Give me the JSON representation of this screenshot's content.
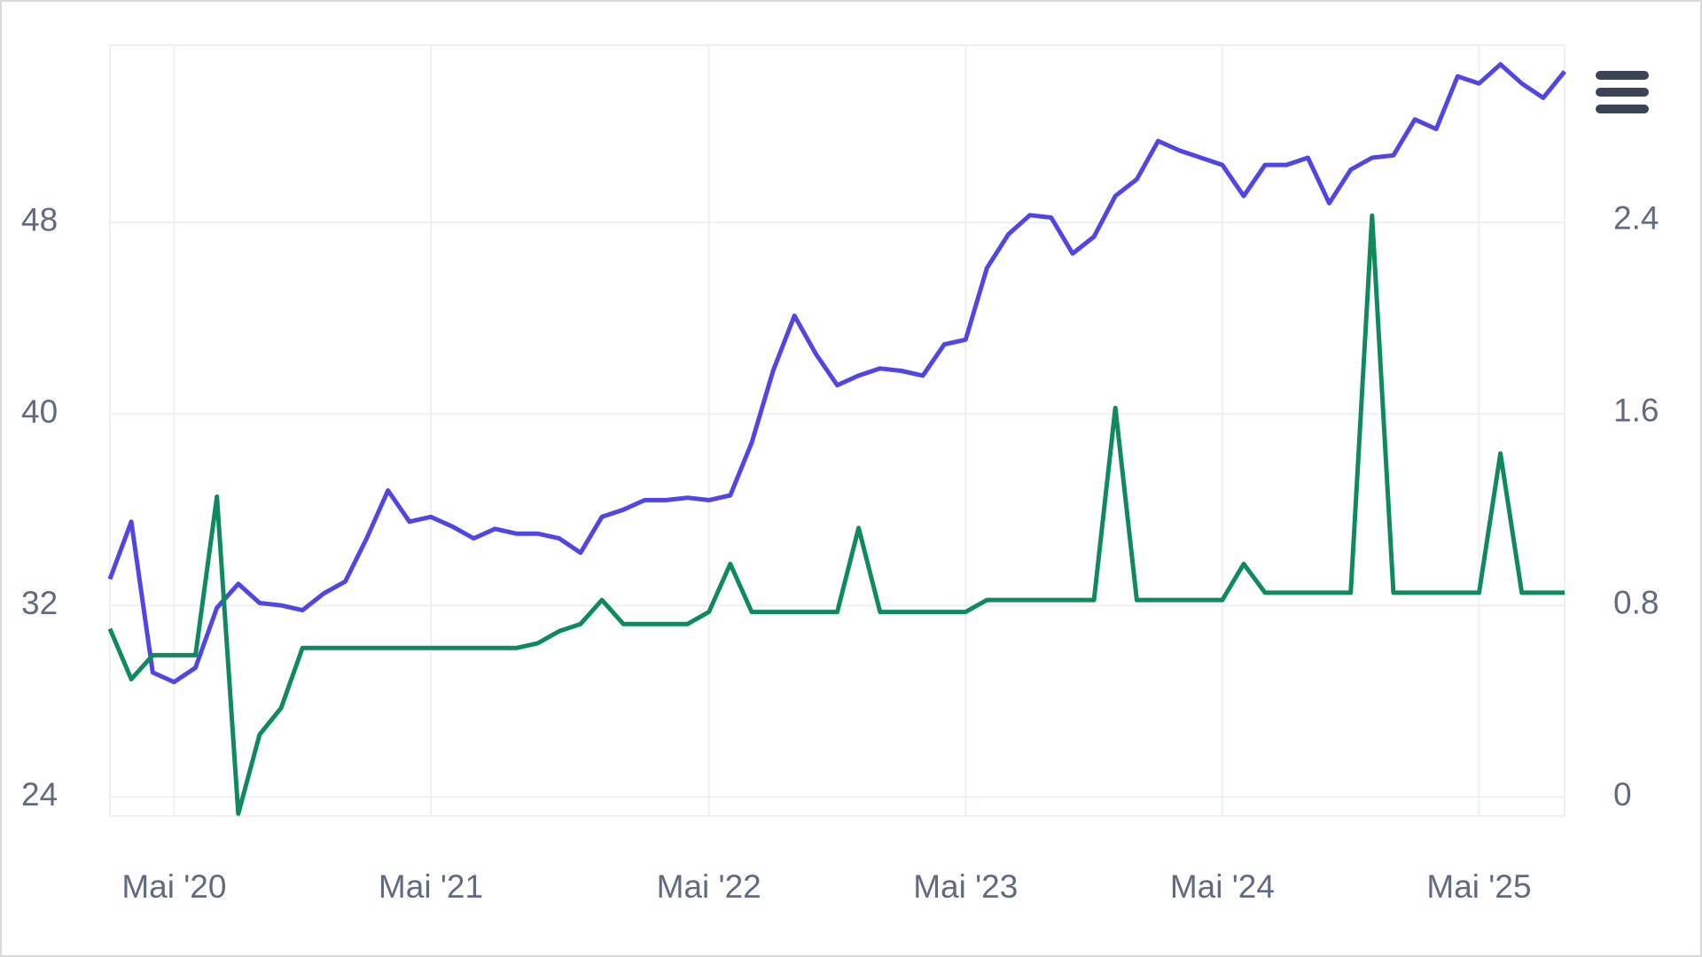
{
  "chart_data": {
    "type": "line",
    "categories": [
      null,
      null,
      null,
      "Mai '20",
      null,
      null,
      null,
      null,
      null,
      null,
      null,
      null,
      null,
      null,
      null,
      "Mai '21",
      null,
      null,
      null,
      null,
      null,
      null,
      null,
      null,
      null,
      null,
      null,
      null,
      "Mai '22",
      null,
      null,
      null,
      null,
      null,
      null,
      null,
      null,
      null,
      null,
      null,
      "Mai '23",
      null,
      null,
      null,
      null,
      null,
      null,
      null,
      null,
      null,
      null,
      null,
      "Mai '24",
      null,
      null,
      null,
      null,
      null,
      null,
      null,
      null,
      null,
      null,
      null,
      "Mai '25",
      null,
      null,
      null,
      null
    ],
    "series": [
      {
        "color": "#5046e5",
        "values": [
          33.1,
          35.5,
          29.2,
          28.8,
          29.4,
          31.9,
          32.9,
          32.1,
          32.0,
          31.8,
          32.5,
          33.0,
          34.8,
          36.8,
          35.5,
          35.7,
          35.3,
          34.8,
          35.2,
          35.0,
          35.0,
          34.8,
          34.2,
          35.7,
          36.0,
          36.4,
          36.4,
          36.5,
          36.4,
          36.6,
          38.8,
          41.8,
          44.1,
          42.5,
          41.2,
          41.6,
          41.9,
          41.8,
          41.6,
          42.9,
          43.1,
          46.1,
          47.5,
          48.3,
          48.2,
          46.7,
          47.4,
          49.1,
          49.8,
          51.4,
          51.0,
          50.7,
          50.4,
          49.1,
          50.4,
          50.4,
          50.7,
          48.8,
          50.2,
          50.7,
          50.8,
          52.3,
          51.9,
          54.1,
          53.8,
          54.6,
          53.8,
          53.2,
          54.3
        ]
      },
      {
        "color": "#0f8a5f",
        "axis": "y2",
        "values": [
          0.7,
          0.49,
          0.59,
          0.59,
          0.59,
          1.25,
          -0.07,
          0.26,
          0.37,
          0.62,
          0.62,
          0.62,
          0.62,
          0.62,
          0.62,
          0.62,
          0.62,
          0.62,
          0.62,
          0.62,
          0.64,
          0.69,
          0.72,
          0.82,
          0.72,
          0.72,
          0.72,
          0.72,
          0.77,
          0.97,
          0.77,
          0.77,
          0.77,
          0.77,
          0.77,
          1.12,
          0.77,
          0.77,
          0.77,
          0.77,
          0.77,
          0.82,
          0.82,
          0.82,
          0.82,
          0.82,
          0.82,
          1.62,
          0.82,
          0.82,
          0.82,
          0.82,
          0.82,
          0.97,
          0.85,
          0.85,
          0.85,
          0.85,
          0.85,
          2.42,
          0.85,
          0.85,
          0.85,
          0.85,
          0.85,
          1.43,
          0.85,
          0.85,
          0.85
        ]
      }
    ],
    "ylim": [
      23.2,
      55.4
    ],
    "yticks": [
      24,
      32,
      40,
      48
    ],
    "y2lim": [
      -0.08,
      3.13
    ],
    "y2ticks": [
      0,
      0.8,
      1.6,
      2.4
    ],
    "grid": true
  }
}
